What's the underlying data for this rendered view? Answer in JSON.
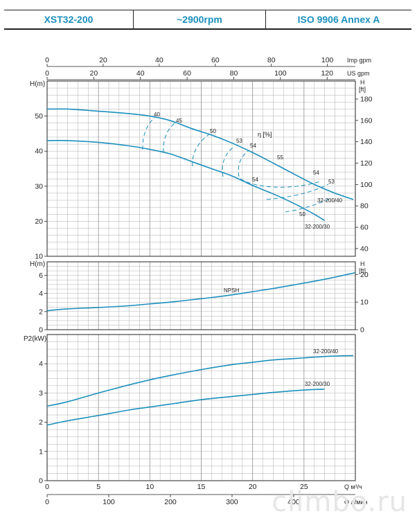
{
  "header": {
    "model": "XST32-200",
    "speed": "~2900rpm",
    "standard": "ISO 9906   Annex A"
  },
  "watermark": "climbo.ru",
  "colors": {
    "curve": "#1b8fbd",
    "grid": "#9a9a9a",
    "text": "#222222"
  },
  "chart_data": [
    {
      "type": "line",
      "panel": "head",
      "ylabel_left": "H(m)",
      "ylabel_right": "H\n[ft]",
      "xlim": [
        0,
        30
      ],
      "ylim": [
        10,
        60
      ],
      "yticks_left": [
        "10",
        "20",
        "30",
        "40",
        "50"
      ],
      "yticks_right": [
        "40",
        "60",
        "80",
        "100",
        "120",
        "140",
        "160",
        "180"
      ],
      "top_axis_imp": {
        "label": "Imp gpm",
        "ticks": [
          "0",
          "20",
          "40",
          "60",
          "80",
          "100"
        ]
      },
      "top_axis_us": {
        "label": "US gpm",
        "ticks": [
          "0",
          "20",
          "40",
          "60",
          "80",
          "100",
          "120"
        ]
      },
      "eff_label": "η [%]",
      "series": [
        {
          "name": "32-200/40",
          "x": [
            0,
            2,
            5,
            8,
            10,
            12,
            14,
            16,
            18,
            20,
            22,
            24,
            26,
            28,
            29.8
          ],
          "y": [
            52,
            52,
            51.4,
            50.7,
            50,
            48.7,
            46.5,
            44.6,
            42.3,
            39.6,
            36.6,
            33.5,
            30.5,
            28,
            26.2
          ]
        },
        {
          "name": "32-200/30",
          "x": [
            0,
            2,
            5,
            8,
            10,
            12,
            14,
            16,
            18,
            20,
            22,
            24,
            26,
            27
          ],
          "y": [
            43,
            43,
            42.5,
            41.5,
            40.5,
            39.2,
            37.1,
            35,
            32.9,
            30.2,
            27.8,
            25.1,
            22,
            20.2
          ]
        }
      ],
      "efficiency_labels": [
        "40",
        "45",
        "50",
        "53",
        "54",
        "55",
        "54",
        "53",
        "50",
        "54"
      ]
    },
    {
      "type": "line",
      "panel": "npsh",
      "ylabel_left": "H(m)",
      "ylabel_right": "H\n[ft]",
      "xlim": [
        0,
        30
      ],
      "ylim": [
        0,
        7.5
      ],
      "yticks_left": [
        "0",
        "2",
        "4",
        "6"
      ],
      "yticks_right": [
        "0",
        "10",
        "20"
      ],
      "series": [
        {
          "name": "NPSH",
          "x": [
            0,
            2,
            5,
            8,
            10,
            12,
            14,
            16,
            18,
            20,
            22,
            24,
            26,
            28,
            30
          ],
          "y": [
            2.1,
            2.3,
            2.45,
            2.65,
            2.85,
            3.05,
            3.3,
            3.55,
            3.85,
            4.2,
            4.55,
            4.95,
            5.35,
            5.8,
            6.3
          ]
        }
      ]
    },
    {
      "type": "line",
      "panel": "power",
      "ylabel_left": "P2(kW)",
      "xlim": [
        0,
        30
      ],
      "ylim": [
        0,
        5
      ],
      "yticks_left": [
        "0",
        "1",
        "2",
        "3",
        "4"
      ],
      "xticks": [
        "0",
        "5",
        "10",
        "15",
        "20",
        "25"
      ],
      "x_unit_m3": "Q   м³/ч",
      "bottom_axis_lpm": {
        "label": "Q   л/мин",
        "ticks": [
          "0",
          "100",
          "200",
          "300",
          "400"
        ]
      },
      "series": [
        {
          "name": "32-200/40",
          "x": [
            0,
            2,
            5,
            8,
            10,
            12,
            15,
            18,
            20,
            22,
            25,
            27,
            29.8
          ],
          "y": [
            2.55,
            2.7,
            3.0,
            3.28,
            3.45,
            3.6,
            3.8,
            3.97,
            4.05,
            4.13,
            4.2,
            4.25,
            4.28
          ]
        },
        {
          "name": "32-200/30",
          "x": [
            0,
            2,
            5,
            8,
            10,
            12,
            15,
            18,
            20,
            22,
            25,
            27
          ],
          "y": [
            1.9,
            2.05,
            2.23,
            2.42,
            2.52,
            2.62,
            2.77,
            2.88,
            2.95,
            3.02,
            3.1,
            3.13
          ]
        }
      ]
    }
  ]
}
